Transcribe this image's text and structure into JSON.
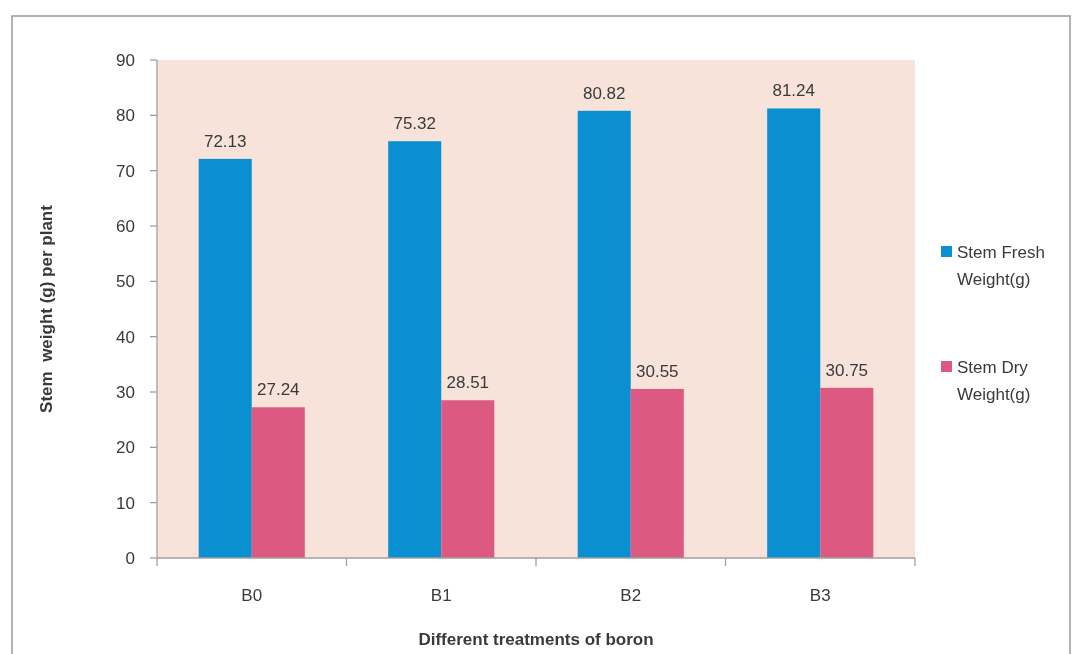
{
  "chart_data": {
    "type": "bar",
    "xlabel": "Different treatments of boron",
    "ylabel": "Stem  weight (g) per plant",
    "categories": [
      "B0",
      "B1",
      "B2",
      "B3"
    ],
    "series": [
      {
        "name": "Stem Fresh Weight(g)",
        "color": "#0a8fd0",
        "values": [
          72.13,
          75.32,
          80.82,
          81.24
        ]
      },
      {
        "name": "Stem Dry Weight(g)",
        "color": "#dc5a82",
        "values": [
          27.24,
          28.51,
          30.55,
          30.75
        ]
      }
    ],
    "ylim": [
      0,
      90
    ],
    "yticks": [
      0,
      10,
      20,
      30,
      40,
      50,
      60,
      70,
      80,
      90
    ],
    "data_labels": true,
    "legend": "right"
  }
}
